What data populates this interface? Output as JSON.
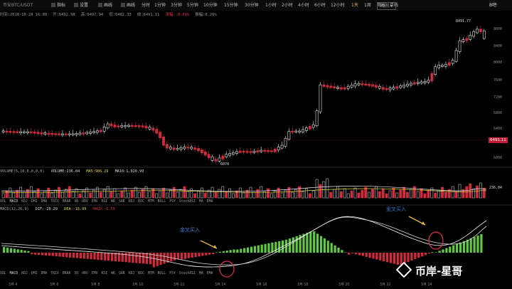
{
  "toolbar": {
    "symbol": "币安BTC/USDT",
    "buttons": [
      {
        "label": "指标",
        "icon": "indicator-icon"
      },
      {
        "label": "设置",
        "icon": "settings-icon"
      },
      {
        "label": "画线",
        "icon": "draw-icon"
      },
      {
        "label": "画线",
        "icon": "pen-icon"
      }
    ],
    "intervals": [
      "分时",
      "1分钟",
      "3分钟",
      "5分钟",
      "10分钟",
      "15分钟",
      "30分钟",
      "1小时",
      "2小时",
      "4小时",
      "6小时",
      "12小时",
      "1天",
      "1周",
      "周线",
      "月线"
    ],
    "active_interval": "1天",
    "more_label": "时间 ▾",
    "right_label": "B吧"
  },
  "info": {
    "time": "时间:2018-10-28 16:00",
    "open": "开:6492.98",
    "high": "高:6497.94",
    "low": "低:6482.33",
    "close": "收:6491.11",
    "change": "涨幅:-0.01%",
    "amplitude": "振幅:0.26%"
  },
  "volume_header": {
    "name": "VOLUME(5,10,0,0,0,0)",
    "vol": "VOLUME:236.04",
    "ma5": "MA5:986.29",
    "ma10": "MA10:1,020.99"
  },
  "macd_header": {
    "name": "MACD(12,26,9)",
    "dif": "DIF:-20.29",
    "dea": "DEA:-16.99",
    "macd": "MACD:-6.59"
  },
  "indicator_tabs": [
    "VOL",
    "MACD",
    "KDJ",
    "DMI",
    "DMA",
    "TRIX",
    "BRAR",
    "VR",
    "OBV",
    "EMV",
    "RSI",
    "WR",
    "SAR",
    "KDJ",
    "ROC",
    "MTM",
    "BOLL",
    "PSY",
    "StochRSI",
    "MA",
    "EMA"
  ],
  "indicator_tabs_active": "MACD",
  "price_axis": [
    "8800",
    "8400",
    "8000",
    "7600",
    "7200",
    "6800",
    "6400",
    "6000"
  ],
  "price_tag": "6491.11",
  "high_label": "8491.77",
  "low_label": "6070",
  "volume_axis": [
    "236.04"
  ],
  "x_axis": [
    "3月 4",
    "3月 6",
    "3月 8",
    "3月 10",
    "3月 12",
    "3月 14",
    "3月 16",
    "3月 18",
    "3月 20",
    "3月 22",
    "3月 24"
  ],
  "annotations": [
    "金叉买入",
    "金叉买入"
  ],
  "watermark": "币岸-星哥",
  "colors": {
    "up": "#e8e8e8",
    "down": "#d52a3c",
    "annotation": "#3f7dd8",
    "arrow": "#e8b83a",
    "hist_up": "#5ecb41",
    "hist_down": "#d52a3c"
  }
}
